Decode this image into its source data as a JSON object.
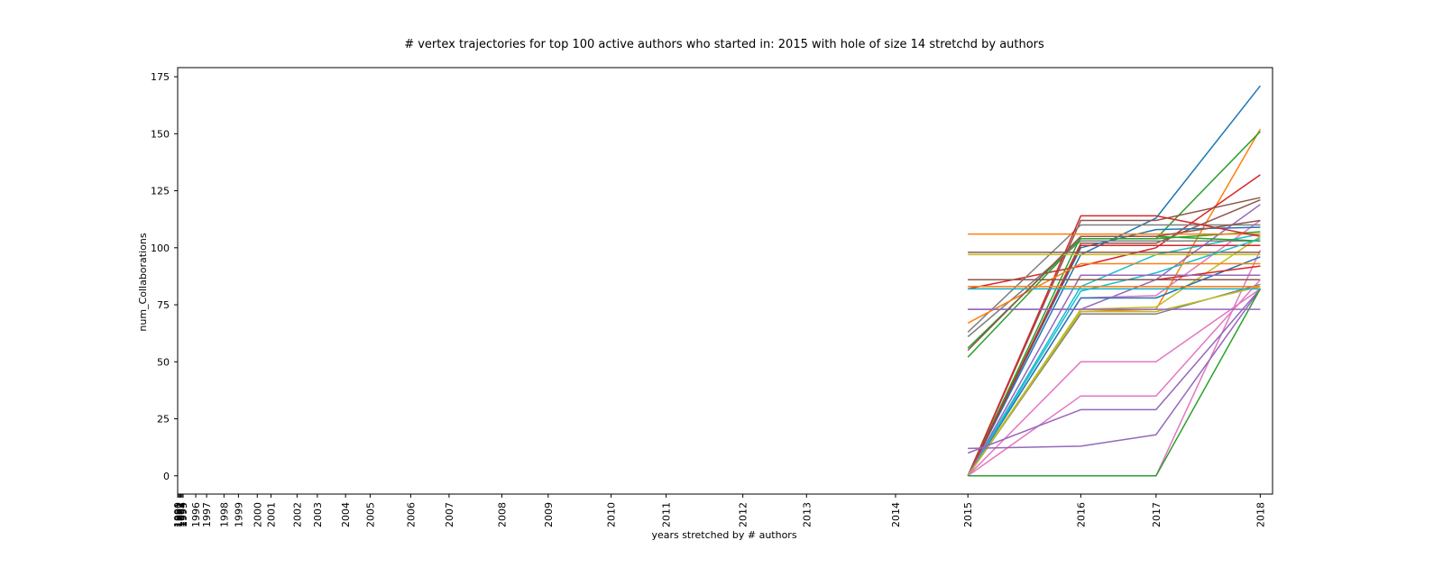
{
  "chart_data": {
    "type": "line",
    "title": "# vertex trajectories for top 100 active authors who started in: 2015 with hole of size 14 stretchd by authors",
    "xlabel": "years stretched by # authors",
    "ylabel": "num_Collaborations",
    "x_ticks": [
      "1990",
      "1991",
      "1992",
      "1993",
      "1994",
      "1995",
      "1996",
      "1997",
      "1998",
      "1999",
      "2000",
      "2001",
      "2002",
      "2003",
      "2004",
      "2005",
      "2006",
      "2007",
      "2008",
      "2009",
      "2010",
      "2011",
      "2012",
      "2013",
      "2014",
      "2015",
      "2016",
      "2017",
      "2018"
    ],
    "x_tick_positions": [
      1990,
      1990.15,
      1990.3,
      1990.45,
      1990.6,
      1990.75,
      1992.5,
      1994,
      1996.4,
      1998.4,
      2001,
      2002.9,
      2006.5,
      2009.3,
      2013.2,
      2016.6,
      2022.2,
      2027.5,
      2034.8,
      2041.2,
      2049.9,
      2057.5,
      2068.1,
      2076.9,
      2089.2,
      2099.2,
      2114.8,
      2125.2,
      2139.6
    ],
    "y_ticks": [
      0,
      25,
      50,
      75,
      100,
      125,
      150,
      175
    ],
    "ylim": [
      -8,
      179
    ],
    "grid": false,
    "series": [
      {
        "color": "#1f77b4",
        "values": [
          0,
          97,
          113,
          171
        ]
      },
      {
        "color": "#ff7f0e",
        "values": [
          0,
          72,
          73,
          152
        ]
      },
      {
        "color": "#2ca02c",
        "values": [
          56,
          104,
          104,
          151
        ]
      },
      {
        "color": "#d62728",
        "values": [
          82,
          92,
          100,
          132
        ]
      },
      {
        "color": "#8c564b",
        "values": [
          0,
          112,
          112,
          122
        ]
      },
      {
        "color": "#8c564b",
        "values": [
          0,
          102,
          102,
          121
        ]
      },
      {
        "color": "#9467bd",
        "values": [
          73,
          73,
          86,
          119
        ]
      },
      {
        "color": "#e377c2",
        "values": [
          0,
          78,
          79,
          112
        ]
      },
      {
        "color": "#7f7f7f",
        "values": [
          63,
          110,
          110,
          110
        ]
      },
      {
        "color": "#1f77b4",
        "values": [
          0,
          100,
          108,
          109
        ]
      },
      {
        "color": "#2ca02c",
        "values": [
          52,
          104,
          104,
          107
        ]
      },
      {
        "color": "#17becf",
        "values": [
          0,
          83,
          97,
          106
        ]
      },
      {
        "color": "#ff7f0e",
        "values": [
          106,
          106,
          106,
          106
        ]
      },
      {
        "color": "#d62728",
        "values": [
          0,
          114,
          114,
          105
        ]
      },
      {
        "color": "#bcbd22",
        "values": [
          0,
          73,
          74,
          105
        ]
      },
      {
        "color": "#7f7f7f",
        "values": [
          61,
          103,
          103,
          103
        ]
      },
      {
        "color": "#2ca02c",
        "values": [
          0,
          105,
          105,
          103
        ]
      },
      {
        "color": "#d62728",
        "values": [
          0,
          101,
          101,
          101
        ]
      },
      {
        "color": "#e377c2",
        "values": [
          0,
          0,
          0,
          99
        ]
      },
      {
        "color": "#8c564b",
        "values": [
          98,
          98,
          98,
          98
        ]
      },
      {
        "color": "#bcbd22",
        "values": [
          97,
          97,
          97,
          97
        ]
      },
      {
        "color": "#1f77b4",
        "values": [
          0,
          78,
          78,
          96
        ]
      },
      {
        "color": "#17becf",
        "values": [
          0,
          81,
          89,
          104
        ]
      },
      {
        "color": "#ff7f0e",
        "values": [
          67,
          93,
          93,
          93
        ]
      },
      {
        "color": "#d62728",
        "values": [
          86,
          86,
          86,
          92
        ]
      },
      {
        "color": "#9467bd",
        "values": [
          0,
          88,
          88,
          88
        ]
      },
      {
        "color": "#8c564b",
        "values": [
          86,
          86,
          86,
          86
        ]
      },
      {
        "color": "#e377c2",
        "values": [
          0,
          35,
          35,
          86
        ]
      },
      {
        "color": "#7f7f7f",
        "values": [
          0,
          71,
          71,
          84
        ]
      },
      {
        "color": "#bcbd22",
        "values": [
          0,
          72,
          72,
          83
        ]
      },
      {
        "color": "#ff7f0e",
        "values": [
          83,
          83,
          83,
          83
        ]
      },
      {
        "color": "#d62728",
        "values": [
          82,
          82,
          82,
          82
        ]
      },
      {
        "color": "#17becf",
        "values": [
          82,
          82,
          82,
          82
        ]
      },
      {
        "color": "#e377c2",
        "values": [
          0,
          50,
          50,
          82
        ]
      },
      {
        "color": "#9467bd",
        "values": [
          10,
          29,
          29,
          82
        ]
      },
      {
        "color": "#9467bd",
        "values": [
          12,
          13,
          18,
          82
        ]
      },
      {
        "color": "#2ca02c",
        "values": [
          0,
          0,
          0,
          82
        ]
      },
      {
        "color": "#9467bd",
        "values": [
          73,
          73,
          73,
          73
        ]
      },
      {
        "color": "#8c564b",
        "values": [
          55,
          105,
          105,
          112
        ]
      }
    ]
  }
}
